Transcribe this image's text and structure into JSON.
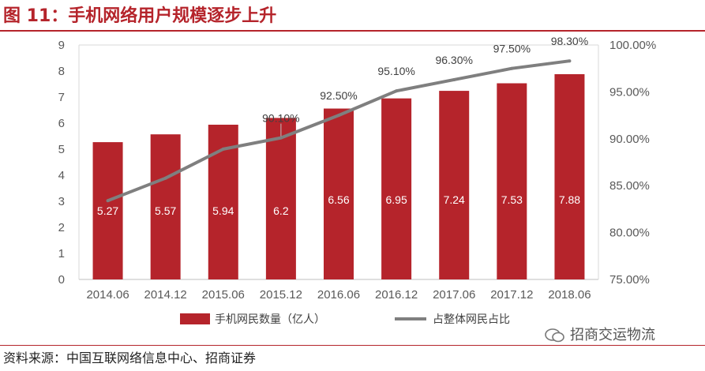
{
  "page": {
    "title": "图 11：手机网络用户规模逐步上升",
    "source": "资料来源：中国互联网络信息中心、招商证券",
    "watermark": "招商交运物流"
  },
  "colors": {
    "accent": "#b5242b",
    "bar": "#b5242b",
    "line": "#7f7f7f"
  },
  "chart_data": {
    "type": "bar",
    "title": "手机网络用户规模逐步上升",
    "categories": [
      "2014.06",
      "2014.12",
      "2015.06",
      "2015.12",
      "2016.06",
      "2016.12",
      "2017.06",
      "2017.12",
      "2018.06"
    ],
    "series": [
      {
        "name": "手机网民数量（亿人）",
        "type": "bar",
        "axis": "left",
        "values": [
          5.27,
          5.57,
          5.94,
          6.2,
          6.56,
          6.95,
          7.24,
          7.53,
          7.88
        ],
        "labels": [
          "5.27",
          "5.57",
          "5.94",
          "6.2",
          "6.56",
          "6.95",
          "7.24",
          "7.53",
          "7.88"
        ]
      },
      {
        "name": "占整体网民占比",
        "type": "line",
        "axis": "right",
        "values": [
          83.4,
          85.8,
          88.9,
          90.1,
          92.5,
          95.1,
          96.3,
          97.5,
          98.3
        ],
        "labels": [
          "",
          "",
          "",
          "90.10%",
          "92.50%",
          "95.10%",
          "96.30%",
          "97.50%",
          "98.30%"
        ]
      }
    ],
    "yleft": {
      "min": 0,
      "max": 9,
      "ticks": [
        "0",
        "1",
        "2",
        "3",
        "4",
        "5",
        "6",
        "7",
        "8",
        "9"
      ]
    },
    "yright": {
      "min": 75,
      "max": 100,
      "ticks": [
        "75.00%",
        "80.00%",
        "85.00%",
        "90.00%",
        "95.00%",
        "100.00%"
      ]
    },
    "legend": [
      "手机网民数量（亿人）",
      "占整体网民占比"
    ],
    "legend_position": "bottom",
    "grid": false
  }
}
